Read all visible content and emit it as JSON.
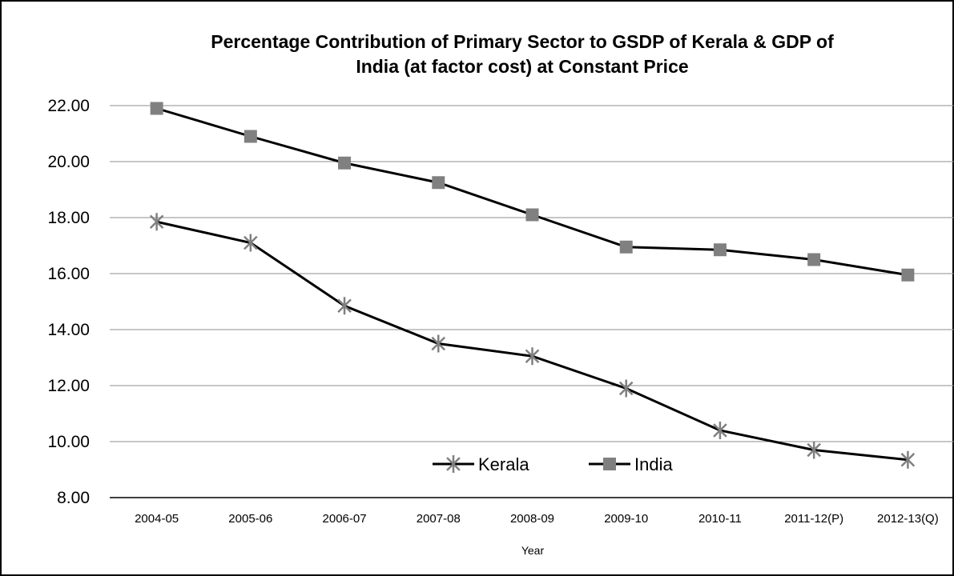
{
  "chart_data": {
    "type": "line",
    "title": "Percentage  Contribution of  Primary Sector to GSDP of Kerala  &  GDP of India (at factor cost) at Constant Price",
    "title_lines": [
      "Percentage  Contribution of  Primary Sector to GSDP of Kerala  &  GDP of",
      "India (at factor cost) at Constant Price"
    ],
    "xlabel": "Year",
    "ylabel": "",
    "categories": [
      "2004-05",
      "2005-06",
      "2006-07",
      "2007-08",
      "2008-09",
      "2009-10",
      "2010-11",
      "2011-12(P)",
      "2012-13(Q)"
    ],
    "ylim": [
      8,
      22
    ],
    "yticks": [
      "8.00",
      "10.00",
      "12.00",
      "14.00",
      "16.00",
      "18.00",
      "20.00",
      "22.00"
    ],
    "grid": "horizontal",
    "legend_position": "bottom-center-inside",
    "series": [
      {
        "name": "Kerala",
        "marker": "asterisk",
        "line_color": "#000000",
        "marker_color": "#808080",
        "values": [
          17.85,
          17.1,
          14.85,
          13.5,
          13.05,
          11.9,
          10.4,
          9.7,
          9.35
        ]
      },
      {
        "name": "India",
        "marker": "square",
        "line_color": "#000000",
        "marker_color": "#808080",
        "values": [
          21.9,
          20.9,
          19.95,
          19.25,
          18.1,
          16.95,
          16.85,
          16.5,
          15.95
        ]
      }
    ]
  }
}
